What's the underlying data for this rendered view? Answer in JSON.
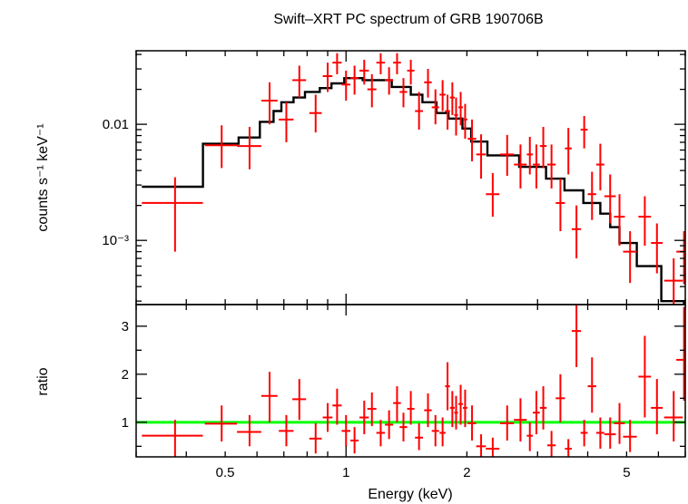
{
  "title": "Swift–XRT PC spectrum of GRB 190706B",
  "colors": {
    "data": "#ff0000",
    "model": "#000000",
    "unity_line": "#00ff00"
  },
  "chart_data": [
    {
      "type": "scatter",
      "panel": "spectrum",
      "xlabel": "Energy (keV)",
      "ylabel": "counts s⁻¹ keV⁻¹",
      "xscale": "log",
      "yscale": "log",
      "xlim": [
        0.3,
        7.0
      ],
      "ylim": [
        0.00028,
        0.043
      ],
      "yticklabels": [
        {
          "value": 0.01,
          "label": "0.01"
        },
        {
          "value": 0.001,
          "label": "10⁻³"
        }
      ],
      "series": [
        {
          "role": "data",
          "x": [
            0.375,
            0.49,
            0.575,
            0.645,
            0.71,
            0.765,
            0.84,
            0.9,
            0.95,
            1.0,
            1.05,
            1.11,
            1.16,
            1.22,
            1.28,
            1.34,
            1.39,
            1.45,
            1.52,
            1.6,
            1.67,
            1.74,
            1.79,
            1.84,
            1.88,
            1.93,
            1.98,
            2.06,
            2.17,
            2.32,
            2.52,
            2.72,
            2.87,
            2.98,
            3.1,
            3.25,
            3.42,
            3.58,
            3.75,
            3.92,
            4.1,
            4.3,
            4.55,
            4.8,
            5.1,
            5.55,
            5.95,
            6.55,
            6.95
          ],
          "y": [
            0.0021,
            0.0066,
            0.0065,
            0.016,
            0.011,
            0.024,
            0.0125,
            0.026,
            0.034,
            0.022,
            0.025,
            0.029,
            0.02,
            0.034,
            0.024,
            0.034,
            0.019,
            0.029,
            0.013,
            0.023,
            0.014,
            0.018,
            0.013,
            0.017,
            0.012,
            0.014,
            0.011,
            0.0075,
            0.0055,
            0.0025,
            0.0055,
            0.0045,
            0.0055,
            0.0045,
            0.0065,
            0.0045,
            0.0021,
            0.0062,
            0.00125,
            0.009,
            0.0025,
            0.0045,
            0.0024,
            0.0016,
            0.0008,
            0.0016,
            0.00095,
            0.00045,
            0.0008
          ],
          "xerr": [
            0.065,
            0.045,
            0.04,
            0.03,
            0.03,
            0.03,
            0.03,
            0.025,
            0.025,
            0.025,
            0.025,
            0.03,
            0.03,
            0.03,
            0.03,
            0.03,
            0.03,
            0.03,
            0.035,
            0.035,
            0.035,
            0.03,
            0.025,
            0.025,
            0.02,
            0.025,
            0.025,
            0.05,
            0.06,
            0.09,
            0.1,
            0.1,
            0.05,
            0.06,
            0.06,
            0.08,
            0.09,
            0.07,
            0.1,
            0.08,
            0.1,
            0.1,
            0.15,
            0.15,
            0.2,
            0.2,
            0.2,
            0.35,
            0.3
          ],
          "ylo": [
            0.0008,
            0.0042,
            0.0041,
            0.01,
            0.007,
            0.017,
            0.0085,
            0.019,
            0.027,
            0.016,
            0.018,
            0.022,
            0.014,
            0.027,
            0.018,
            0.027,
            0.014,
            0.022,
            0.009,
            0.017,
            0.01,
            0.013,
            0.009,
            0.012,
            0.008,
            0.0098,
            0.0075,
            0.0048,
            0.0034,
            0.0016,
            0.0036,
            0.0028,
            0.0037,
            0.0028,
            0.0042,
            0.0028,
            0.0012,
            0.0037,
            0.0007,
            0.0062,
            0.0015,
            0.0027,
            0.0014,
            0.0009,
            0.00043,
            0.0009,
            0.00052,
            0.00024,
            0.00042
          ],
          "yhi": [
            0.0035,
            0.0098,
            0.0095,
            0.023,
            0.0155,
            0.032,
            0.018,
            0.034,
            0.041,
            0.029,
            0.032,
            0.036,
            0.027,
            0.041,
            0.031,
            0.041,
            0.025,
            0.036,
            0.019,
            0.03,
            0.02,
            0.024,
            0.018,
            0.023,
            0.017,
            0.019,
            0.015,
            0.011,
            0.0082,
            0.0038,
            0.0081,
            0.0067,
            0.0078,
            0.0067,
            0.0095,
            0.0067,
            0.0034,
            0.0093,
            0.002,
            0.0118,
            0.0039,
            0.0068,
            0.0037,
            0.0025,
            0.0012,
            0.0024,
            0.0014,
            0.0007,
            0.0012
          ]
        },
        {
          "role": "model",
          "type": "step",
          "x": [
            0.31,
            0.44,
            0.44,
            0.54,
            0.54,
            0.61,
            0.61,
            0.66,
            0.66,
            0.69,
            0.69,
            0.74,
            0.74,
            0.79,
            0.79,
            0.86,
            0.86,
            0.92,
            0.92,
            0.99,
            0.99,
            1.1,
            1.1,
            1.3,
            1.3,
            1.45,
            1.45,
            1.55,
            1.55,
            1.68,
            1.68,
            1.8,
            1.8,
            1.95,
            1.95,
            2.05,
            2.05,
            2.25,
            2.25,
            2.7,
            2.7,
            3.15,
            3.15,
            3.5,
            3.5,
            3.9,
            3.9,
            4.3,
            4.3,
            4.55,
            4.55,
            4.8,
            4.8,
            5.3,
            5.3,
            6.1,
            6.1,
            6.95,
            6.95
          ],
          "y": [
            0.0029,
            0.0029,
            0.0068,
            0.0068,
            0.0077,
            0.0077,
            0.0105,
            0.0105,
            0.013,
            0.013,
            0.0155,
            0.0155,
            0.017,
            0.017,
            0.019,
            0.019,
            0.0205,
            0.0205,
            0.0225,
            0.0225,
            0.025,
            0.025,
            0.024,
            0.024,
            0.021,
            0.021,
            0.018,
            0.018,
            0.0155,
            0.0155,
            0.0125,
            0.0125,
            0.0112,
            0.0112,
            0.0092,
            0.0092,
            0.0071,
            0.0071,
            0.0054,
            0.0054,
            0.0043,
            0.0043,
            0.0034,
            0.0034,
            0.0027,
            0.0027,
            0.0021,
            0.0021,
            0.0017,
            0.0017,
            0.0013,
            0.0013,
            0.00095,
            0.00095,
            0.0006,
            0.0006,
            0.0003,
            0.0003,
            0.00028
          ]
        }
      ]
    },
    {
      "type": "scatter",
      "panel": "ratio",
      "xlabel": "Energy (keV)",
      "ylabel": "ratio",
      "xscale": "log",
      "yscale": "linear",
      "xlim": [
        0.3,
        7.0
      ],
      "ylim": [
        0.28,
        3.45
      ],
      "xticklabels": [
        {
          "value": 0.5,
          "label": "0.5"
        },
        {
          "value": 1,
          "label": "1"
        },
        {
          "value": 2,
          "label": "2"
        },
        {
          "value": 5,
          "label": "5"
        }
      ],
      "yticklabels": [
        {
          "value": 1,
          "label": "1"
        },
        {
          "value": 2,
          "label": "2"
        },
        {
          "value": 3,
          "label": "3"
        }
      ],
      "reference_line": 1.0,
      "series": [
        {
          "role": "data",
          "x": [
            0.375,
            0.49,
            0.575,
            0.645,
            0.71,
            0.765,
            0.84,
            0.9,
            0.95,
            1.0,
            1.05,
            1.11,
            1.16,
            1.22,
            1.28,
            1.34,
            1.39,
            1.45,
            1.52,
            1.6,
            1.67,
            1.74,
            1.79,
            1.84,
            1.88,
            1.93,
            1.98,
            2.06,
            2.17,
            2.32,
            2.52,
            2.72,
            2.87,
            2.98,
            3.1,
            3.25,
            3.42,
            3.58,
            3.75,
            3.92,
            4.1,
            4.3,
            4.55,
            4.8,
            5.1,
            5.55,
            5.95,
            6.55,
            6.95
          ],
          "y": [
            0.72,
            0.97,
            0.8,
            1.55,
            0.82,
            1.48,
            0.66,
            1.1,
            1.35,
            0.82,
            0.62,
            1.1,
            1.28,
            0.78,
            0.95,
            1.4,
            0.9,
            1.28,
            0.68,
            1.25,
            0.82,
            0.78,
            1.75,
            1.3,
            1.2,
            1.38,
            1.3,
            0.98,
            0.5,
            0.45,
            0.98,
            1.05,
            0.72,
            1.2,
            1.3,
            0.52,
            1.5,
            0.45,
            2.9,
            0.78,
            1.75,
            0.78,
            0.75,
            0.98,
            0.7,
            1.95,
            1.3,
            1.1,
            2.3
          ],
          "xerr": [
            0.065,
            0.045,
            0.04,
            0.03,
            0.03,
            0.03,
            0.03,
            0.025,
            0.025,
            0.025,
            0.025,
            0.03,
            0.03,
            0.03,
            0.03,
            0.03,
            0.03,
            0.03,
            0.035,
            0.035,
            0.035,
            0.03,
            0.025,
            0.025,
            0.02,
            0.025,
            0.025,
            0.05,
            0.06,
            0.09,
            0.1,
            0.1,
            0.05,
            0.06,
            0.06,
            0.08,
            0.09,
            0.07,
            0.1,
            0.08,
            0.1,
            0.1,
            0.15,
            0.15,
            0.2,
            0.2,
            0.2,
            0.35,
            0.3
          ],
          "ylo": [
            0.28,
            0.6,
            0.5,
            1.0,
            0.5,
            1.05,
            0.35,
            0.8,
            0.95,
            0.5,
            0.35,
            0.75,
            0.92,
            0.5,
            0.65,
            1.0,
            0.6,
            0.95,
            0.42,
            0.9,
            0.5,
            0.5,
            1.25,
            0.9,
            0.85,
            0.95,
            0.9,
            0.62,
            0.28,
            0.28,
            0.62,
            0.6,
            0.4,
            0.75,
            0.85,
            0.28,
            1.0,
            0.28,
            2.15,
            0.5,
            1.2,
            0.45,
            0.45,
            0.55,
            0.38,
            1.1,
            0.75,
            0.6,
            1.45
          ],
          "yhi": [
            1.05,
            1.35,
            1.15,
            2.05,
            1.15,
            1.9,
            0.98,
            1.4,
            1.7,
            1.15,
            0.9,
            1.45,
            1.62,
            1.05,
            1.25,
            1.75,
            1.2,
            1.65,
            0.98,
            1.6,
            1.15,
            1.1,
            2.25,
            1.65,
            1.55,
            1.78,
            1.68,
            1.35,
            0.75,
            0.68,
            1.35,
            1.5,
            1.0,
            1.65,
            1.75,
            0.82,
            2.0,
            0.65,
            3.45,
            1.05,
            2.35,
            1.1,
            1.1,
            1.4,
            1.05,
            2.8,
            1.9,
            1.65,
            3.4
          ]
        }
      ]
    }
  ]
}
